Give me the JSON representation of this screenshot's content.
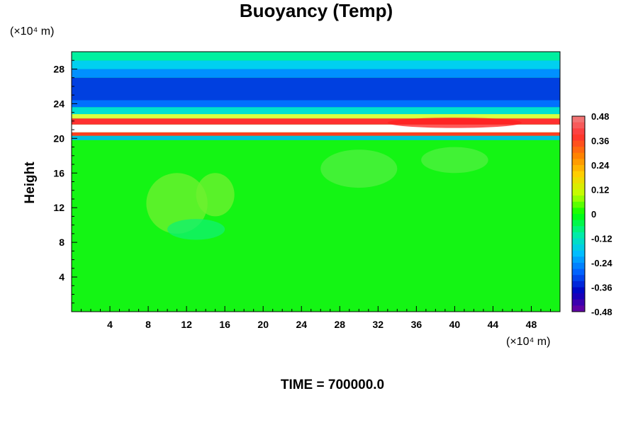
{
  "chart_data": {
    "type": "heatmap",
    "title": "Buoyancy (Temp)",
    "ylabel": "Height",
    "xlabel": "",
    "y_unit": "(×10⁴ m)",
    "x_unit": "(×10⁴ m)",
    "time_label": "TIME = 700000.0",
    "xlim": [
      0,
      51
    ],
    "ylim": [
      0,
      30
    ],
    "x_ticks": [
      4,
      8,
      12,
      16,
      20,
      24,
      28,
      32,
      36,
      40,
      44,
      48
    ],
    "y_ticks": [
      4,
      8,
      12,
      16,
      20,
      24,
      28
    ],
    "colorbar": {
      "range": [
        -0.48,
        0.48
      ],
      "tick_values": [
        0.48,
        0.36,
        0.24,
        0.12,
        0,
        -0.12,
        -0.24,
        -0.36,
        -0.48
      ],
      "tick_labels": [
        "0.48",
        "0.36",
        "0.24",
        "0.12",
        "0",
        "-0.12",
        "-0.24",
        "-0.36",
        "-0.48"
      ],
      "colors_top_to_bottom": [
        "#f08080",
        "#ff3030",
        "#ff8000",
        "#ffd000",
        "#c0ff00",
        "#00ff00",
        "#00f0a0",
        "#00c0ff",
        "#0060ff",
        "#0000c0",
        "#7000a0"
      ]
    },
    "bands": [
      {
        "y_min": 0,
        "y_max": 19.8,
        "value": 0.0,
        "color": "#14f514"
      },
      {
        "y_min": 19.8,
        "y_max": 20.3,
        "value": -0.2,
        "color": "#00c0e0"
      },
      {
        "y_min": 20.3,
        "y_max": 20.7,
        "value": 0.36,
        "color": "#ff4020"
      },
      {
        "y_min": 20.7,
        "y_max": 21.6,
        "value": 0.48,
        "color": "#ffffff"
      },
      {
        "y_min": 21.6,
        "y_max": 22.3,
        "value": 0.36,
        "color": "#ff3030"
      },
      {
        "y_min": 22.3,
        "y_max": 22.8,
        "value": 0.12,
        "color": "#d8ff40"
      },
      {
        "y_min": 22.8,
        "y_max": 23.6,
        "value": -0.12,
        "color": "#00e0d0"
      },
      {
        "y_min": 23.6,
        "y_max": 24.4,
        "value": -0.24,
        "color": "#0070ff"
      },
      {
        "y_min": 24.4,
        "y_max": 27.0,
        "value": -0.34,
        "color": "#0040e0"
      },
      {
        "y_min": 27.0,
        "y_max": 28.0,
        "value": -0.24,
        "color": "#0090ff"
      },
      {
        "y_min": 28.0,
        "y_max": 29.0,
        "value": -0.15,
        "color": "#00d0f0"
      },
      {
        "y_min": 29.0,
        "y_max": 30.0,
        "value": -0.05,
        "color": "#00f0a0"
      }
    ],
    "anomalies": [
      {
        "x": 11,
        "y": 12.5,
        "rx": 3.2,
        "ry": 3.5,
        "value": 0.06,
        "color": "#70f030"
      },
      {
        "x": 15,
        "y": 13.5,
        "rx": 2.0,
        "ry": 2.5,
        "value": 0.06,
        "color": "#70f030"
      },
      {
        "x": 30,
        "y": 16.5,
        "rx": 4.0,
        "ry": 2.2,
        "value": 0.04,
        "color": "#50f040"
      },
      {
        "x": 40,
        "y": 17.5,
        "rx": 3.5,
        "ry": 1.5,
        "value": 0.04,
        "color": "#50f040"
      },
      {
        "x": 13,
        "y": 9.5,
        "rx": 3.0,
        "ry": 1.2,
        "value": -0.04,
        "color": "#10f070"
      },
      {
        "x": 40,
        "y": 21.8,
        "rx": 7.0,
        "ry": 0.6,
        "value": 0.45,
        "color": "#ff2020"
      }
    ]
  }
}
